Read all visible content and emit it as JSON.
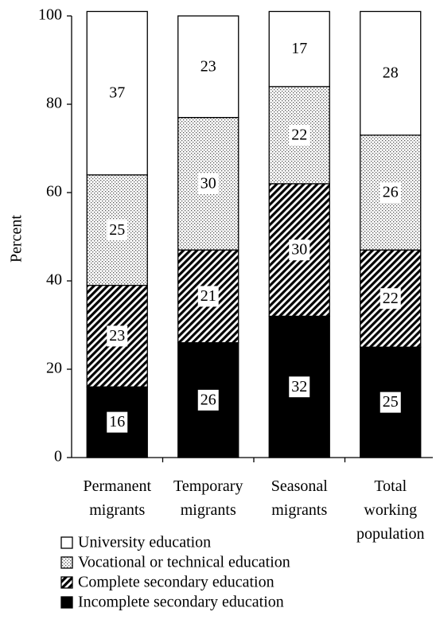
{
  "chart_data": {
    "type": "stacked-bar",
    "y_label": "Percent",
    "categories": [
      "Permanent migrants",
      "Temporary migrants",
      "Seasonal migrants",
      "Total working population"
    ],
    "series": [
      {
        "name": "Incomplete secondary education",
        "color": "#000000",
        "pattern": "solid",
        "values": [
          16,
          26,
          32,
          25
        ]
      },
      {
        "name": "Complete secondary education",
        "color": "#000000",
        "pattern": "hatch",
        "values": [
          23,
          21,
          30,
          22
        ]
      },
      {
        "name": "Vocational or technical education",
        "color": "#555555",
        "pattern": "dots",
        "values": [
          25,
          30,
          22,
          26
        ]
      },
      {
        "name": "University education",
        "color": "#ffffff",
        "pattern": "solid",
        "values": [
          37,
          23,
          17,
          28
        ]
      }
    ],
    "ylim": [
      0,
      100
    ],
    "yticks": [
      0,
      20,
      40,
      60,
      80,
      100
    ],
    "grid": false,
    "legend": "bottom-left"
  }
}
